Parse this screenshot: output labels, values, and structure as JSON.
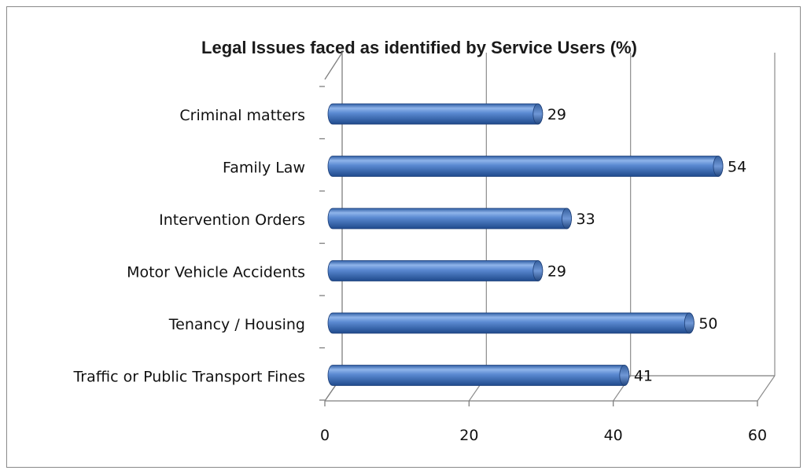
{
  "chart_data": {
    "type": "bar",
    "orientation": "horizontal",
    "title": "Legal Issues faced as identified by Service Users (%)",
    "xlabel": "",
    "ylabel": "",
    "categories": [
      "Criminal matters",
      "Family Law",
      "Intervention Orders",
      "Motor Vehicle Accidents",
      "Tenancy / Housing",
      "Traffic or Public Transport Fines"
    ],
    "values": [
      29,
      54,
      33,
      29,
      50,
      41
    ],
    "xlim": [
      0,
      60
    ],
    "xticks": [
      "0",
      "20",
      "40",
      "60"
    ],
    "grid": true,
    "legend": "none",
    "style": "3d-cylinder",
    "bar_color": "#4472C4"
  }
}
